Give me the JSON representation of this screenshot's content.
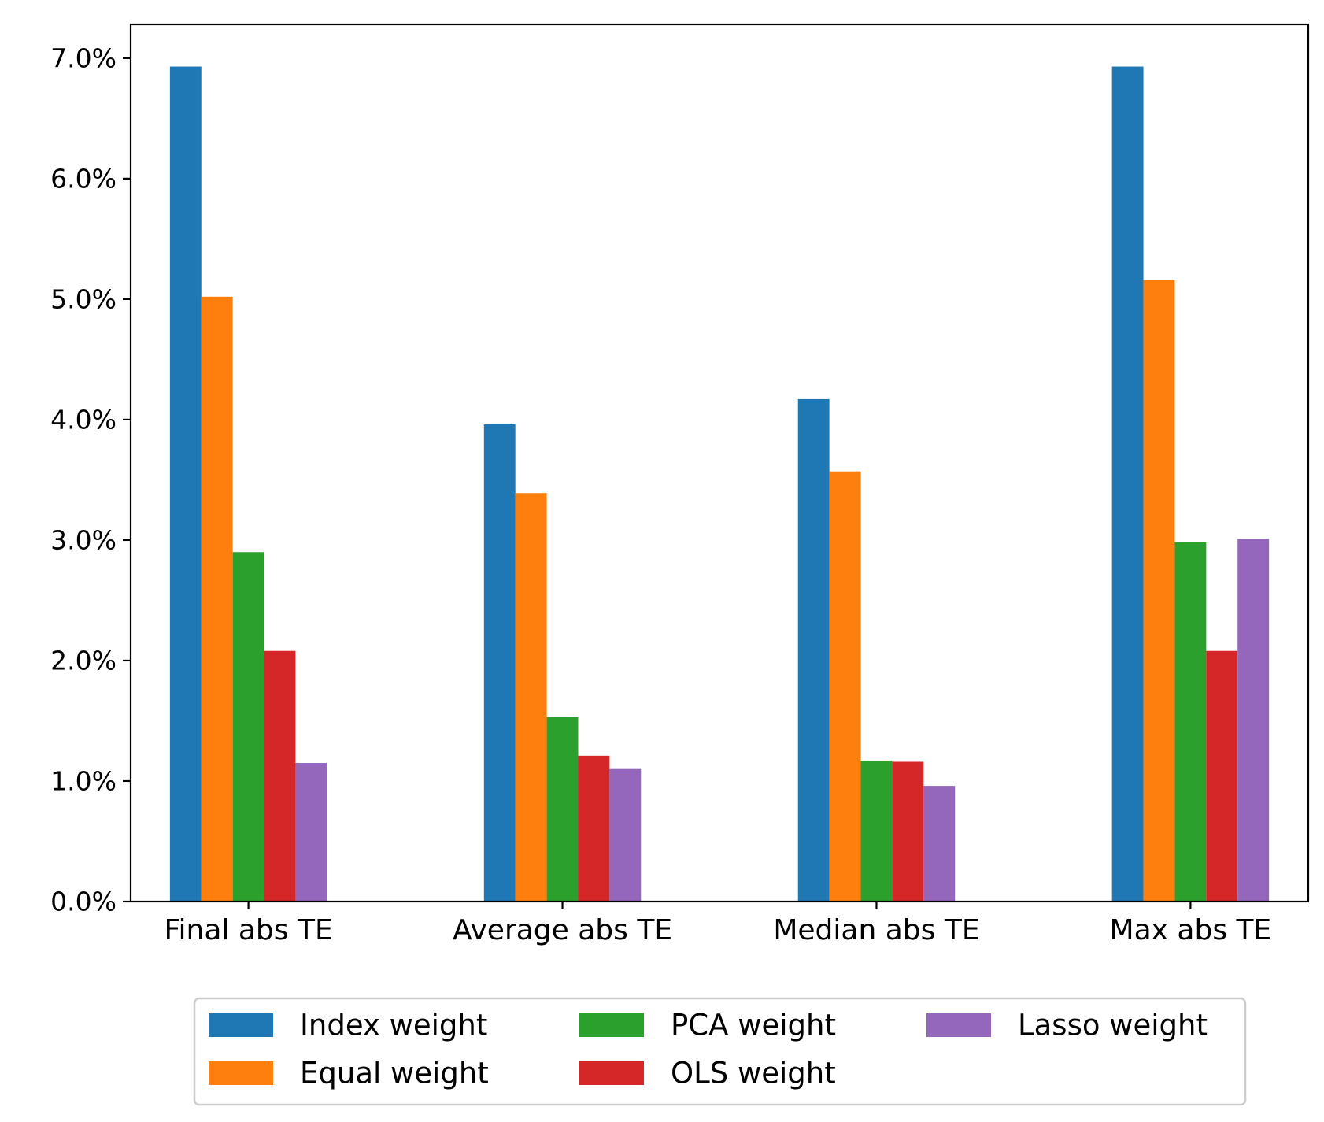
{
  "chart_data": {
    "type": "bar",
    "title": "",
    "xlabel": "",
    "ylabel": "",
    "categories": [
      "Final abs TE",
      "Average abs TE",
      "Median abs TE",
      "Max abs TE"
    ],
    "series": [
      {
        "name": "Index weight",
        "color": "#1f77b4",
        "values": [
          6.93,
          3.96,
          4.17,
          6.93
        ]
      },
      {
        "name": "Equal weight",
        "color": "#ff7f0e",
        "values": [
          5.02,
          3.39,
          3.57,
          5.16
        ]
      },
      {
        "name": "PCA weight",
        "color": "#2ca02c",
        "values": [
          2.9,
          1.53,
          1.17,
          2.98
        ]
      },
      {
        "name": "OLS weight",
        "color": "#d62728",
        "values": [
          2.08,
          1.21,
          1.16,
          2.08
        ]
      },
      {
        "name": "Lasso weight",
        "color": "#9467bd",
        "values": [
          1.15,
          1.1,
          0.96,
          3.01
        ]
      }
    ],
    "ylim": [
      0,
      7.28
    ],
    "yticks": [
      "0.0%",
      "1.0%",
      "2.0%",
      "3.0%",
      "4.0%",
      "5.0%",
      "6.0%",
      "7.0%"
    ],
    "ytick_values": [
      0,
      1,
      2,
      3,
      4,
      5,
      6,
      7
    ],
    "grid": false,
    "legend": {
      "position": "bottom-center",
      "columns": 3
    }
  }
}
